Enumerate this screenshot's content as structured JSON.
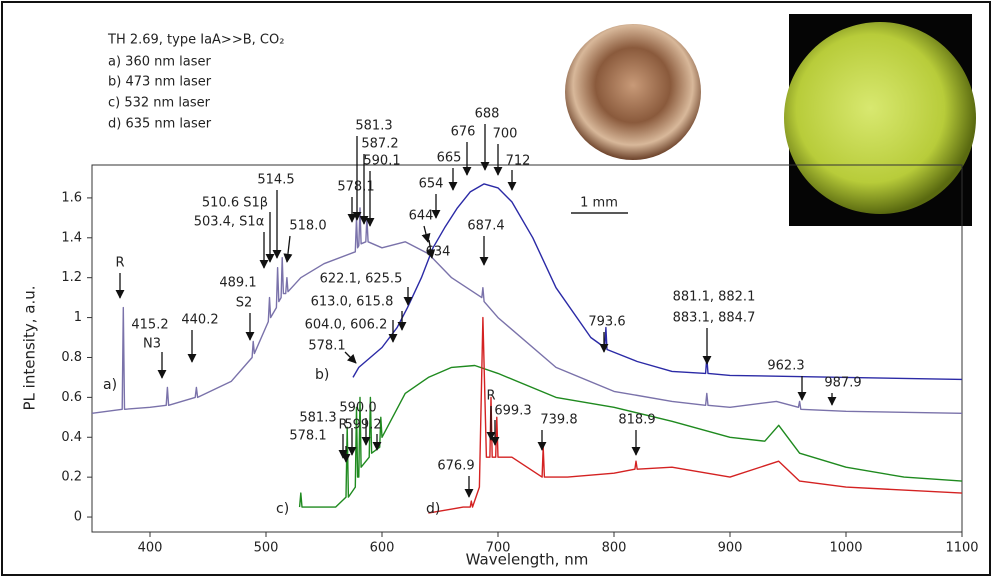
{
  "chart_data": {
    "type": "line",
    "title": "TH 2.69, type IaA>>B, CO₂",
    "x_label": "Wavelength, nm",
    "y_label": "PL intensity, a.u.",
    "scale_bar": "1 mm",
    "xlim": [
      350,
      1100
    ],
    "xticks": [
      400,
      500,
      600,
      700,
      800,
      900,
      1000,
      1100
    ],
    "ylim": [
      -0.075,
      1.765
    ],
    "yticks": [
      0,
      0.2,
      0.4,
      0.6,
      0.8,
      1,
      1.2,
      1.4,
      1.6
    ],
    "grid": false,
    "curve_labels": [
      "a)",
      "b)",
      "c)",
      "d)"
    ],
    "series": [
      {
        "name": "a) 360 nm laser",
        "color": "#7a72aa",
        "x": [
          350,
          376,
          377,
          378,
          400,
          414,
          415,
          416,
          439,
          440,
          441,
          470,
          488,
          489,
          490,
          502,
          503,
          504,
          509,
          510,
          511,
          513,
          514,
          515,
          517,
          518,
          519,
          530,
          550,
          577,
          578,
          579,
          580,
          581,
          582,
          586,
          587,
          588,
          600,
          620,
          640,
          660,
          686,
          687,
          688,
          700,
          750,
          800,
          850,
          879,
          880,
          881,
          900,
          940,
          959,
          960,
          961,
          1000,
          1100
        ],
        "values": [
          0.52,
          0.54,
          1.05,
          0.54,
          0.55,
          0.56,
          0.65,
          0.56,
          0.6,
          0.65,
          0.6,
          0.68,
          0.8,
          0.88,
          0.82,
          0.98,
          1.1,
          1.0,
          1.05,
          1.25,
          1.08,
          1.1,
          1.3,
          1.12,
          1.12,
          1.2,
          1.13,
          1.2,
          1.27,
          1.33,
          1.5,
          1.35,
          1.36,
          1.55,
          1.37,
          1.38,
          1.5,
          1.38,
          1.35,
          1.38,
          1.32,
          1.2,
          1.1,
          1.15,
          1.08,
          1.0,
          0.75,
          0.63,
          0.58,
          0.56,
          0.62,
          0.56,
          0.55,
          0.58,
          0.55,
          0.58,
          0.54,
          0.53,
          0.52
        ]
      },
      {
        "name": "b) 473 nm laser",
        "color": "#2b2aa6",
        "x": [
          575,
          580,
          600,
          613,
          622,
          634,
          644,
          654,
          665,
          676,
          688,
          700,
          712,
          730,
          750,
          780,
          792,
          793,
          794,
          820,
          850,
          879,
          880,
          881,
          900,
          1000,
          1100
        ],
        "values": [
          0.7,
          0.75,
          0.85,
          0.95,
          1.05,
          1.2,
          1.35,
          1.45,
          1.55,
          1.63,
          1.67,
          1.65,
          1.58,
          1.4,
          1.15,
          0.9,
          0.85,
          0.95,
          0.84,
          0.78,
          0.73,
          0.72,
          0.8,
          0.72,
          0.71,
          0.7,
          0.69
        ]
      },
      {
        "name": "c) 532 nm laser",
        "color": "#1f8a1f",
        "x": [
          529,
          530,
          531,
          560,
          569,
          570,
          571,
          577,
          578,
          579,
          580,
          581,
          582,
          589,
          590,
          591,
          598,
          599,
          600,
          620,
          640,
          660,
          680,
          700,
          750,
          800,
          850,
          900,
          930,
          942,
          960,
          1000,
          1050,
          1100
        ],
        "values": [
          0.05,
          0.12,
          0.05,
          0.05,
          0.1,
          0.45,
          0.1,
          0.15,
          0.55,
          0.2,
          0.2,
          0.6,
          0.25,
          0.3,
          0.6,
          0.32,
          0.35,
          0.5,
          0.4,
          0.62,
          0.7,
          0.75,
          0.76,
          0.72,
          0.6,
          0.55,
          0.48,
          0.4,
          0.38,
          0.46,
          0.32,
          0.25,
          0.2,
          0.18
        ]
      },
      {
        "name": "d) 635 nm laser",
        "color": "#d42222",
        "x": [
          640,
          670,
          676,
          677,
          678,
          684,
          687,
          690,
          693,
          694,
          695,
          698,
          699,
          700,
          712,
          738,
          739,
          740,
          760,
          800,
          818,
          819,
          820,
          850,
          900,
          942,
          960,
          1000,
          1100
        ],
        "values": [
          0.02,
          0.05,
          0.05,
          0.08,
          0.05,
          0.15,
          1.0,
          0.3,
          0.3,
          0.6,
          0.3,
          0.3,
          0.5,
          0.3,
          0.3,
          0.2,
          0.35,
          0.2,
          0.2,
          0.22,
          0.24,
          0.28,
          0.24,
          0.25,
          0.2,
          0.28,
          0.18,
          0.15,
          0.12
        ]
      }
    ],
    "annotations": [
      "R",
      "415.2",
      "N3",
      "440.2",
      "489.1",
      "S2",
      "503.4, S1α",
      "510.6 S1β",
      "514.5",
      "518.0",
      "578.1",
      "581.3",
      "587.2",
      "590.1",
      "634",
      "644",
      "654",
      "665",
      "676",
      "688",
      "700",
      "712",
      "687.4",
      "622.1, 625.5",
      "613.0, 615.8",
      "604.0, 606.2",
      "578.1",
      "793.6",
      "881.1, 882.1",
      "883.1, 884.7",
      "962.3",
      "987.9",
      "590.0",
      "581.3",
      "599.2",
      "578.1",
      "R",
      "R",
      "699.3",
      "739.8",
      "818.9",
      "676.9"
    ]
  }
}
